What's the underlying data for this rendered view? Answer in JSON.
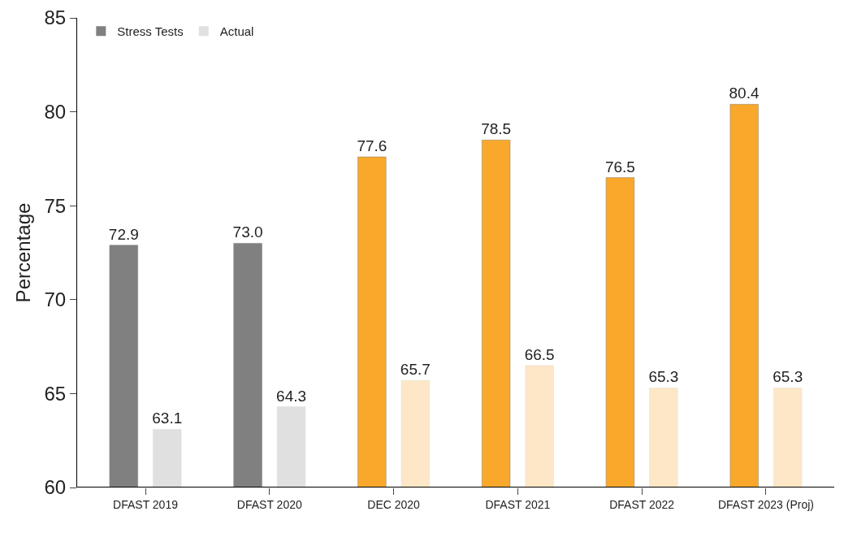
{
  "chart_data": {
    "type": "bar",
    "ylabel": "Percentage",
    "categories": [
      "DFAST 2019",
      "DFAST 2020",
      "DEC 2020",
      "DFAST 2021",
      "DFAST 2022",
      "DFAST 2023 (Proj)"
    ],
    "series": [
      {
        "name": "Stress Tests",
        "color": "#808080",
        "colors": [
          "#808080",
          "#808080",
          "#f9a82c",
          "#f9a82c",
          "#f9a82c",
          "#f9a82c"
        ],
        "values": [
          72.9,
          73.0,
          77.6,
          78.5,
          76.5,
          80.4
        ],
        "value_labels": [
          "72.9",
          "73.0",
          "77.6",
          "78.5",
          "76.5",
          "80.4"
        ]
      },
      {
        "name": "Actual",
        "color": "#e0e0e0",
        "colors": [
          "#e0e0e0",
          "#e0e0e0",
          "#fde7c6",
          "#fde7c6",
          "#fde7c6",
          "#fde7c6"
        ],
        "values": [
          63.1,
          64.3,
          65.7,
          66.5,
          65.3,
          65.3
        ],
        "value_labels": [
          "63.1",
          "64.3",
          "65.7",
          "66.5",
          "65.3",
          "65.3"
        ]
      }
    ],
    "ylim": [
      60,
      85
    ],
    "yticks": [
      60,
      65,
      70,
      75,
      80,
      85
    ],
    "grid": false,
    "legend": "top left"
  }
}
